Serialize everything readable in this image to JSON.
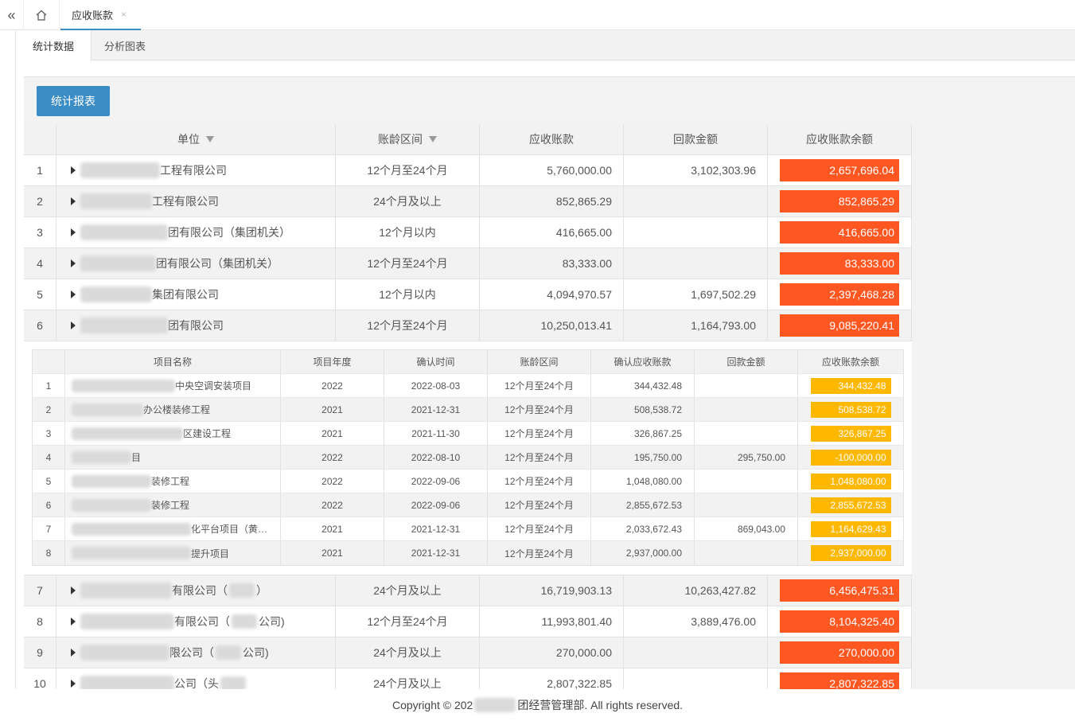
{
  "topbar": {
    "collapse_glyph": "«",
    "home_icon": "home-icon",
    "active_tab": "应收账款",
    "close_glyph": "×"
  },
  "subtabs": [
    "统计数据",
    "分析图表"
  ],
  "report_button": "统计报表",
  "main_headers": {
    "unit": "单位",
    "age": "账龄区间",
    "ar": "应收账款",
    "back": "回款金额",
    "balance": "应收账款余额"
  },
  "rows_before": [
    {
      "idx": "1",
      "unit_suffix": "工程有限公司",
      "age": "12个月至24个月",
      "ar": "5,760,000.00",
      "back": "3,102,303.96",
      "balance": "2,657,696.04"
    },
    {
      "idx": "2",
      "unit_suffix": "工程有限公司",
      "age": "24个月及以上",
      "ar": "852,865.29",
      "back": "",
      "balance": "852,865.29"
    },
    {
      "idx": "3",
      "unit_suffix": "团有限公司（集团机关）",
      "age": "12个月以内",
      "ar": "416,665.00",
      "back": "",
      "balance": "416,665.00"
    },
    {
      "idx": "4",
      "unit_suffix": "团有限公司（集团机关）",
      "age": "12个月至24个月",
      "ar": "83,333.00",
      "back": "",
      "balance": "83,333.00"
    },
    {
      "idx": "5",
      "unit_suffix": "集团有限公司",
      "age": "12个月以内",
      "ar": "4,094,970.57",
      "back": "1,697,502.29",
      "balance": "2,397,468.28"
    },
    {
      "idx": "6",
      "unit_suffix": "团有限公司",
      "age": "12个月至24个月",
      "ar": "10,250,013.41",
      "back": "1,164,793.00",
      "balance": "9,085,220.41"
    }
  ],
  "sub_headers": {
    "name": "项目名称",
    "year": "项目年度",
    "date": "确认时间",
    "age": "账龄区间",
    "ar": "确认应收账款",
    "back": "回款金额",
    "balance": "应收账款余额"
  },
  "sub_rows": [
    {
      "idx": "1",
      "name_suffix": "中央空调安装项目",
      "year": "2022",
      "date": "2022-08-03",
      "age": "12个月至24个月",
      "ar": "344,432.48",
      "back": "",
      "balance": "344,432.48"
    },
    {
      "idx": "2",
      "name_suffix": "办公楼装修工程",
      "year": "2021",
      "date": "2021-12-31",
      "age": "12个月至24个月",
      "ar": "508,538.72",
      "back": "",
      "balance": "508,538.72"
    },
    {
      "idx": "3",
      "name_suffix": "区建设工程",
      "year": "2021",
      "date": "2021-11-30",
      "age": "12个月至24个月",
      "ar": "326,867.25",
      "back": "",
      "balance": "326,867.25"
    },
    {
      "idx": "4",
      "name_suffix": "目",
      "year": "2022",
      "date": "2022-08-10",
      "age": "12个月至24个月",
      "ar": "195,750.00",
      "back": "295,750.00",
      "balance": "-100,000.00"
    },
    {
      "idx": "5",
      "name_suffix": "装修工程",
      "year": "2022",
      "date": "2022-09-06",
      "age": "12个月至24个月",
      "ar": "1,048,080.00",
      "back": "",
      "balance": "1,048,080.00"
    },
    {
      "idx": "6",
      "name_suffix": "装修工程",
      "year": "2022",
      "date": "2022-09-06",
      "age": "12个月至24个月",
      "ar": "2,855,672.53",
      "back": "",
      "balance": "2,855,672.53"
    },
    {
      "idx": "7",
      "name_suffix": "化平台项目（黄…",
      "year": "2021",
      "date": "2021-12-31",
      "age": "12个月至24个月",
      "ar": "2,033,672.43",
      "back": "869,043.00",
      "balance": "1,164,629.43"
    },
    {
      "idx": "8",
      "name_suffix": "提升项目",
      "year": "2021",
      "date": "2021-12-31",
      "age": "12个月至24个月",
      "ar": "2,937,000.00",
      "back": "",
      "balance": "2,937,000.00"
    }
  ],
  "rows_after": [
    {
      "idx": "7",
      "unit_suffix": "有限公司（",
      "unit_tail": "）",
      "age": "24个月及以上",
      "ar": "16,719,903.13",
      "back": "10,263,427.82",
      "balance": "6,456,475.31"
    },
    {
      "idx": "8",
      "unit_suffix": "有限公司（",
      "unit_tail": "公司)",
      "age": "12个月至24个月",
      "ar": "11,993,801.40",
      "back": "3,889,476.00",
      "balance": "8,104,325.40"
    },
    {
      "idx": "9",
      "unit_suffix": "限公司（",
      "unit_tail": "公司)",
      "age": "24个月及以上",
      "ar": "270,000.00",
      "back": "",
      "balance": "270,000.00"
    },
    {
      "idx": "10",
      "unit_suffix": "公司（头",
      "unit_tail": "",
      "age": "24个月及以上",
      "ar": "2,807,322.85",
      "back": "",
      "balance": "2,807,322.85"
    }
  ],
  "footer": {
    "prefix": "Copyright © 202",
    "suffix": "团经营管理部. All rights reserved."
  },
  "colors": {
    "primary": "#3b8dc5",
    "balance_main": "#ff5722",
    "balance_sub": "#ffb800"
  }
}
